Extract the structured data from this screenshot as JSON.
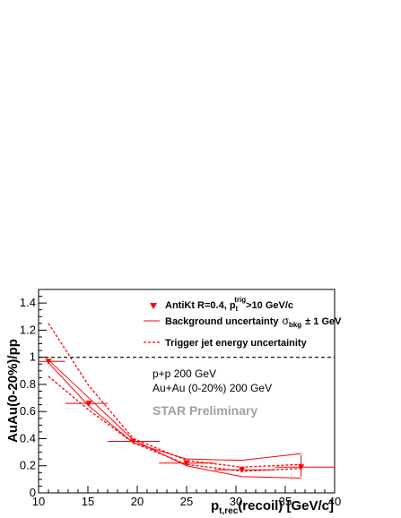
{
  "chart_data": {
    "type": "scatter",
    "title": "",
    "xlabel": "p",
    "xlabel_sub": "t,rec",
    "xlabel_rest": "(recoil) [GeV/c]",
    "ylabel": "AuAu(0-20%)/pp",
    "xlim": [
      10,
      40
    ],
    "ylim": [
      0,
      1.5
    ],
    "x_ticks": [
      10,
      15,
      20,
      25,
      30,
      35,
      40
    ],
    "x_tick_labels": [
      "10",
      "15",
      "20",
      "25",
      "30",
      "35",
      "40"
    ],
    "y_ticks": [
      0,
      0.2,
      0.4,
      0.6,
      0.8,
      1,
      1.2,
      1.4
    ],
    "y_tick_labels": [
      "0",
      "0.2",
      "0.4",
      "0.6",
      "0.8",
      "1",
      "1.2",
      "1.4"
    ],
    "grid": false,
    "reference_line": {
      "y": 1,
      "style": "dashed"
    },
    "color": "#ff0000",
    "series": [
      {
        "name": "AntiKt R=0.4,  p",
        "name_sup": "trig",
        "name_sub": "t",
        "name_rest": ">10 GeV/c",
        "marker": "triangle-down",
        "points": [
          {
            "x": 11.0,
            "y": 0.97,
            "xerr": [
              1.0,
              1.7
            ]
          },
          {
            "x": 15.1,
            "y": 0.66,
            "xerr": [
              2.4,
              1.9
            ]
          },
          {
            "x": 19.6,
            "y": 0.38,
            "xerr": [
              2.6,
              2.7
            ]
          },
          {
            "x": 25.0,
            "y": 0.22,
            "xerr": [
              2.8,
              2.8
            ]
          },
          {
            "x": 30.6,
            "y": 0.17,
            "xerr": [
              2.8,
              3.4
            ]
          },
          {
            "x": 36.6,
            "y": 0.19,
            "xerr": [
              2.6,
              3.4
            ]
          }
        ]
      },
      {
        "name": "Background uncertainty",
        "name_sigma": "σ",
        "name_sigma_sub": "bkg",
        "name_rest": "± 1 GeV",
        "line": "solid",
        "bands": [
          {
            "x": [
              11.0,
              15.1,
              19.6,
              25.0,
              30.6,
              36.6
            ],
            "y": [
              0.96,
              0.64,
              0.37,
              0.25,
              0.24,
              0.29
            ]
          },
          {
            "x": [
              11.0,
              15.1,
              19.6,
              25.0,
              30.6,
              36.6
            ],
            "y": [
              0.98,
              0.7,
              0.39,
              0.2,
              0.12,
              0.11
            ]
          }
        ]
      },
      {
        "name": "Trigger jet energy uncertainity",
        "line": "dashed",
        "bands": [
          {
            "x": [
              11.0,
              15.1,
              19.6,
              25.0,
              30.6,
              36.6
            ],
            "y": [
              1.25,
              0.79,
              0.4,
              0.24,
              0.19,
              0.21
            ]
          },
          {
            "x": [
              11.0,
              15.1,
              19.6,
              25.0,
              30.6,
              36.6
            ],
            "y": [
              0.86,
              0.61,
              0.37,
              0.21,
              0.16,
              0.18
            ]
          }
        ]
      }
    ],
    "legend_position": "top-right",
    "annotations": [
      "p+p 200 GeV",
      "Au+Au (0-20%) 200 GeV"
    ],
    "watermark": "STAR Preliminary"
  }
}
